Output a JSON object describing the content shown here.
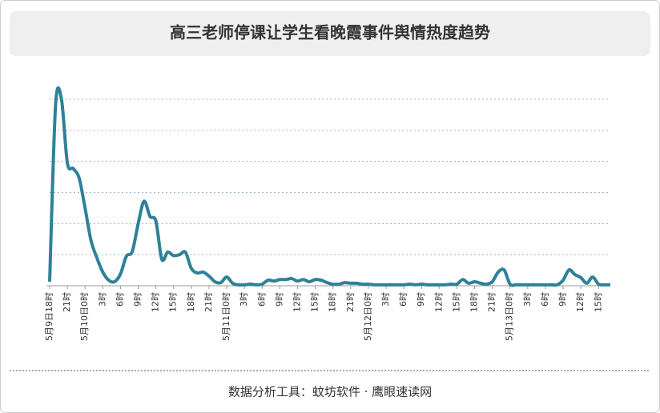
{
  "chart_data": {
    "type": "line",
    "title": "高三老师停课让学生看晚霞事件舆情热度趋势",
    "footer": "数据分析工具：蚊坊软件 · 鹰眼速读网",
    "categories": [
      "5月9日18时",
      null,
      null,
      "21时",
      null,
      null,
      "5月10日0时",
      null,
      null,
      "3时",
      null,
      null,
      "6时",
      null,
      null,
      "9时",
      null,
      null,
      "12时",
      null,
      null,
      "15时",
      null,
      null,
      "18时",
      null,
      null,
      "21时",
      null,
      null,
      "5月11日0时",
      null,
      null,
      "3时",
      null,
      null,
      "6时",
      null,
      null,
      "9时",
      null,
      null,
      "12时",
      null,
      null,
      "15时",
      null,
      null,
      "18时",
      null,
      null,
      "21时",
      null,
      null,
      "5月12日0时",
      null,
      null,
      "3时",
      null,
      null,
      "6时",
      null,
      null,
      "9时",
      null,
      null,
      "12时",
      null,
      null,
      "15时",
      null,
      null,
      "18时",
      null,
      null,
      "21时",
      null,
      null,
      "5月13日0时",
      null,
      null,
      "3时",
      null,
      null,
      "6时",
      null,
      null,
      "9时",
      null,
      null,
      "12时",
      null,
      null,
      "15时",
      null,
      null
    ],
    "values": [
      0.13,
      5.8,
      6.0,
      3.95,
      3.77,
      3.46,
      2.5,
      1.46,
      0.9,
      0.44,
      0.18,
      0.13,
      0.38,
      0.95,
      1.1,
      2.0,
      2.72,
      2.23,
      2.08,
      0.85,
      1.08,
      0.97,
      1.0,
      1.08,
      0.56,
      0.41,
      0.44,
      0.31,
      0.13,
      0.1,
      0.28,
      0.08,
      0.03,
      0.03,
      0.05,
      0.03,
      0.05,
      0.18,
      0.15,
      0.2,
      0.2,
      0.23,
      0.15,
      0.2,
      0.13,
      0.2,
      0.18,
      0.1,
      0.05,
      0.05,
      0.1,
      0.08,
      0.08,
      0.05,
      0.05,
      0.03,
      0.03,
      0.03,
      0.03,
      0.03,
      0.03,
      0.05,
      0.03,
      0.05,
      0.03,
      0.03,
      0.03,
      0.03,
      0.05,
      0.05,
      0.2,
      0.08,
      0.13,
      0.08,
      0.05,
      0.13,
      0.44,
      0.51,
      0.05,
      0.03,
      0.03,
      0.03,
      0.03,
      0.03,
      0.03,
      0.03,
      0.03,
      0.18,
      0.51,
      0.36,
      0.26,
      0.08,
      0.28,
      0.05,
      0.03,
      0.03
    ],
    "color": "#2e8196",
    "ylim": [
      0,
      6
    ],
    "grid": true
  }
}
